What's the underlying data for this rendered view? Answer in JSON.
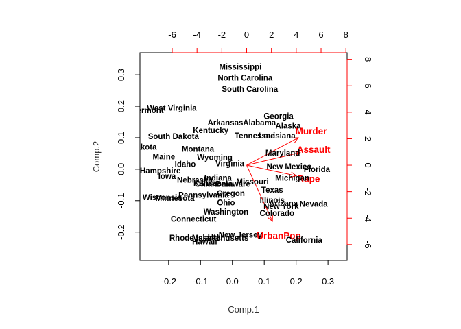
{
  "chart_data": {
    "type": "scatter",
    "xlabel": "Comp.1",
    "ylabel": "Comp.2",
    "xlim": [
      -0.29,
      0.36
    ],
    "ylim": [
      -0.29,
      0.37
    ],
    "xticks": [
      -0.2,
      -0.1,
      0.0,
      0.1,
      0.2,
      0.3
    ],
    "xtick_labels": [
      "-0.2",
      "-0.1",
      "0.0",
      "0.1",
      "0.2",
      "0.3"
    ],
    "yticks": [
      -0.2,
      -0.1,
      0.0,
      0.1,
      0.2,
      0.3
    ],
    "ytick_labels": [
      "-0.2",
      "-0.1",
      "0.0",
      "0.1",
      "0.2",
      "0.3"
    ],
    "top_axis": {
      "lim": [
        -8.6,
        8.1
      ],
      "ticks": [
        -6,
        -4,
        -2,
        0,
        2,
        4,
        6,
        8
      ],
      "tick_labels": [
        "-6",
        "-4",
        "-2",
        "0",
        "2",
        "4",
        "6",
        "8"
      ],
      "color": "#ff0000"
    },
    "right_axis": {
      "lim": [
        -7.2,
        8.5
      ],
      "ticks": [
        -6,
        -4,
        -2,
        0,
        2,
        4,
        6,
        8
      ],
      "tick_labels": [
        "-6",
        "-4",
        "-2",
        "0",
        "2",
        "4",
        "6",
        "8"
      ],
      "color": "#ff0000"
    },
    "observations": [
      {
        "label": "Mississippi",
        "x": 0.025,
        "y": 0.325
      },
      {
        "label": "North Carolina",
        "x": 0.04,
        "y": 0.29
      },
      {
        "label": "South Carolina",
        "x": 0.055,
        "y": 0.255
      },
      {
        "label": "West Virginia",
        "x": -0.19,
        "y": 0.195
      },
      {
        "label": "Vermont",
        "x": -0.265,
        "y": 0.187
      },
      {
        "label": "Georgia",
        "x": 0.145,
        "y": 0.168
      },
      {
        "label": "Arkansas",
        "x": -0.022,
        "y": 0.148
      },
      {
        "label": "Alabama",
        "x": 0.085,
        "y": 0.148
      },
      {
        "label": "Alaska",
        "x": 0.175,
        "y": 0.138
      },
      {
        "label": "Kentucky",
        "x": -0.068,
        "y": 0.124
      },
      {
        "label": "South Dakota",
        "x": -0.185,
        "y": 0.104
      },
      {
        "label": "Tennessee",
        "x": 0.07,
        "y": 0.106
      },
      {
        "label": "Louisiana",
        "x": 0.14,
        "y": 0.106
      },
      {
        "label": "North Dakota",
        "x": -0.315,
        "y": 0.07
      },
      {
        "label": "Montana",
        "x": -0.108,
        "y": 0.064
      },
      {
        "label": "Maine",
        "x": -0.215,
        "y": 0.04
      },
      {
        "label": "Wyoming",
        "x": -0.055,
        "y": 0.038
      },
      {
        "label": "Maryland",
        "x": 0.158,
        "y": 0.052
      },
      {
        "label": "Idaho",
        "x": -0.148,
        "y": 0.016
      },
      {
        "label": "Virginia",
        "x": -0.008,
        "y": 0.018
      },
      {
        "label": "New Mexico",
        "x": 0.178,
        "y": 0.008
      },
      {
        "label": "Florida",
        "x": 0.265,
        "y": 0
      },
      {
        "label": "New Hampshire",
        "x": -0.255,
        "y": -0.005
      },
      {
        "label": "Iowa",
        "x": -0.205,
        "y": -0.022
      },
      {
        "label": "Nebraska",
        "x": -0.118,
        "y": -0.034
      },
      {
        "label": "Indiana",
        "x": -0.045,
        "y": -0.027
      },
      {
        "label": "Kansas",
        "x": -0.078,
        "y": -0.044
      },
      {
        "label": "Oklahoma",
        "x": -0.058,
        "y": -0.047
      },
      {
        "label": "Delaware",
        "x": 0.002,
        "y": -0.047
      },
      {
        "label": "Missouri",
        "x": 0.063,
        "y": -0.04
      },
      {
        "label": "Michigan",
        "x": 0.188,
        "y": -0.027
      },
      {
        "label": "Texas",
        "x": 0.125,
        "y": -0.066
      },
      {
        "label": "Oregon",
        "x": -0.005,
        "y": -0.076
      },
      {
        "label": "Pennsylvania",
        "x": -0.09,
        "y": -0.082
      },
      {
        "label": "Wisconsin",
        "x": -0.22,
        "y": -0.09
      },
      {
        "label": "Minnesota",
        "x": -0.18,
        "y": -0.092
      },
      {
        "label": "Ohio",
        "x": -0.02,
        "y": -0.106
      },
      {
        "label": "Illinois",
        "x": 0.125,
        "y": -0.098
      },
      {
        "label": "Arizona",
        "x": 0.16,
        "y": -0.108
      },
      {
        "label": "New York",
        "x": 0.153,
        "y": -0.118
      },
      {
        "label": "Nevada",
        "x": 0.255,
        "y": -0.11
      },
      {
        "label": "Washington",
        "x": -0.02,
        "y": -0.135
      },
      {
        "label": "Colorado",
        "x": 0.14,
        "y": -0.14
      },
      {
        "label": "Connecticut",
        "x": -0.122,
        "y": -0.158
      },
      {
        "label": "New Jersey",
        "x": 0.025,
        "y": -0.208
      },
      {
        "label": "Rhode Island",
        "x": -0.12,
        "y": -0.218
      },
      {
        "label": "Massachusetts",
        "x": -0.038,
        "y": -0.218
      },
      {
        "label": "Utah",
        "x": -0.05,
        "y": -0.216
      },
      {
        "label": "Hawaii",
        "x": -0.087,
        "y": -0.23
      },
      {
        "label": "California",
        "x": 0.225,
        "y": -0.225
      }
    ],
    "loadings": [
      {
        "label": "Murder",
        "x": 5.2,
        "y": 2.6
      },
      {
        "label": "Assault",
        "x": 5.4,
        "y": 1.2
      },
      {
        "label": "Rape",
        "x": 5.0,
        "y": -1.0
      },
      {
        "label": "UrbanPop",
        "x": 2.6,
        "y": -5.3
      }
    ],
    "loading_color": "#ff0000",
    "point_color": "#000000"
  }
}
